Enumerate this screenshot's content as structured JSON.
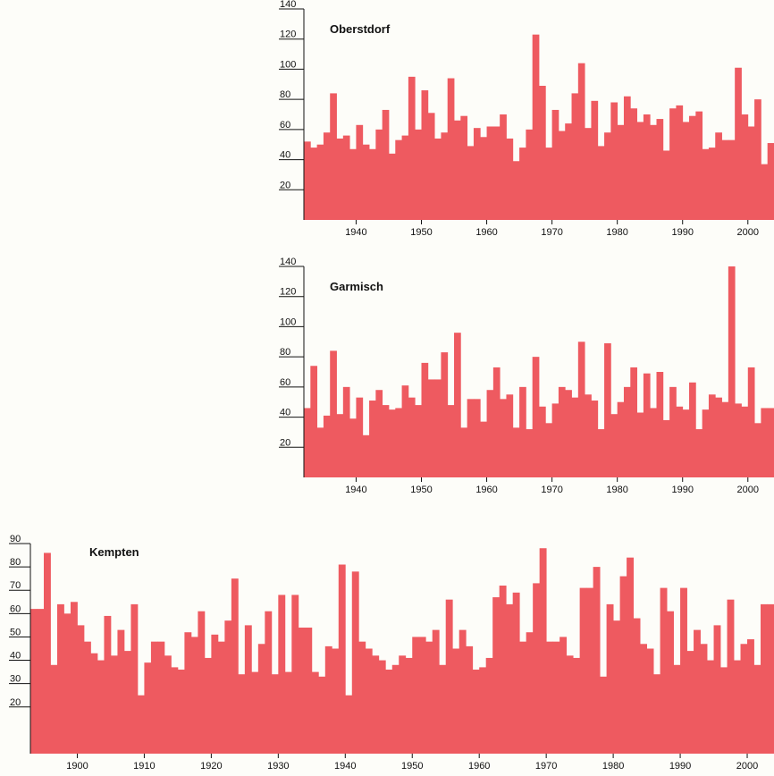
{
  "colors": {
    "bar": "#ee5a60",
    "axis": "#111111",
    "background": "#fdfdf9",
    "edge": "#3a3a9a"
  },
  "chart_data": [
    {
      "type": "bar",
      "title": "Oberstdorf",
      "xlabel": "",
      "ylabel": "",
      "xlim": [
        1932,
        2004
      ],
      "ylim": [
        0,
        140
      ],
      "yticks": [
        20,
        40,
        60,
        80,
        100,
        120,
        140
      ],
      "xticks": [
        1940,
        1950,
        1960,
        1970,
        1980,
        1990,
        2000
      ],
      "x": [
        1932,
        1933,
        1934,
        1935,
        1936,
        1937,
        1938,
        1939,
        1940,
        1941,
        1942,
        1943,
        1944,
        1945,
        1946,
        1947,
        1948,
        1949,
        1950,
        1951,
        1952,
        1953,
        1954,
        1955,
        1956,
        1957,
        1958,
        1959,
        1960,
        1961,
        1962,
        1963,
        1964,
        1965,
        1966,
        1967,
        1968,
        1969,
        1970,
        1971,
        1972,
        1973,
        1974,
        1975,
        1976,
        1977,
        1978,
        1979,
        1980,
        1981,
        1982,
        1983,
        1984,
        1985,
        1986,
        1987,
        1988,
        1989,
        1990,
        1991,
        1992,
        1993,
        1994,
        1995,
        1996,
        1997,
        1998,
        1999,
        2000,
        2001,
        2002,
        2003
      ],
      "values": [
        52,
        48,
        50,
        58,
        84,
        54,
        56,
        47,
        63,
        50,
        47,
        60,
        73,
        44,
        53,
        56,
        95,
        60,
        86,
        71,
        54,
        58,
        94,
        66,
        69,
        49,
        61,
        55,
        62,
        62,
        70,
        54,
        39,
        48,
        60,
        123,
        89,
        48,
        73,
        59,
        64,
        84,
        104,
        61,
        79,
        49,
        58,
        78,
        63,
        82,
        74,
        65,
        70,
        63,
        67,
        46,
        74,
        76,
        65,
        69,
        72,
        47,
        48,
        58,
        53,
        53,
        101,
        70,
        62,
        80,
        37,
        51
      ]
    },
    {
      "type": "bar",
      "title": "Garmisch",
      "xlabel": "",
      "ylabel": "",
      "xlim": [
        1932,
        2004
      ],
      "ylim": [
        0,
        140
      ],
      "yticks": [
        20,
        40,
        60,
        80,
        100,
        120,
        140
      ],
      "xticks": [
        1940,
        1950,
        1960,
        1970,
        1980,
        1990,
        2000
      ],
      "x": [
        1932,
        1933,
        1934,
        1935,
        1936,
        1937,
        1938,
        1939,
        1940,
        1941,
        1942,
        1943,
        1944,
        1945,
        1946,
        1947,
        1948,
        1949,
        1950,
        1951,
        1952,
        1953,
        1954,
        1955,
        1956,
        1957,
        1958,
        1959,
        1960,
        1961,
        1962,
        1963,
        1964,
        1965,
        1966,
        1967,
        1968,
        1969,
        1970,
        1971,
        1972,
        1973,
        1974,
        1975,
        1976,
        1977,
        1978,
        1979,
        1980,
        1981,
        1982,
        1983,
        1984,
        1985,
        1986,
        1987,
        1988,
        1989,
        1990,
        1991,
        1992,
        1993,
        1994,
        1995,
        1996,
        1997,
        1998,
        1999,
        2000,
        2001,
        2002,
        2003
      ],
      "values": [
        46,
        74,
        33,
        41,
        84,
        42,
        60,
        39,
        53,
        28,
        51,
        58,
        48,
        45,
        46,
        61,
        53,
        48,
        76,
        65,
        65,
        83,
        48,
        96,
        33,
        52,
        52,
        37,
        58,
        73,
        52,
        55,
        33,
        60,
        32,
        80,
        47,
        36,
        49,
        60,
        58,
        53,
        90,
        55,
        51,
        32,
        89,
        42,
        50,
        60,
        73,
        43,
        69,
        46,
        70,
        38,
        60,
        47,
        45,
        63,
        32,
        45,
        55,
        53,
        50,
        140,
        49,
        47,
        73,
        36,
        46,
        46
      ]
    },
    {
      "type": "bar",
      "title": "Kempten",
      "xlabel": "",
      "ylabel": "",
      "xlim": [
        1893,
        2004
      ],
      "ylim": [
        0,
        90
      ],
      "yticks": [
        20,
        30,
        40,
        50,
        60,
        70,
        80,
        90
      ],
      "xticks": [
        1900,
        1910,
        1920,
        1930,
        1940,
        1950,
        1960,
        1970,
        1980,
        1990,
        2000
      ],
      "x": [
        1893,
        1894,
        1895,
        1896,
        1897,
        1898,
        1899,
        1900,
        1901,
        1902,
        1903,
        1904,
        1905,
        1906,
        1907,
        1908,
        1909,
        1910,
        1911,
        1912,
        1913,
        1914,
        1915,
        1916,
        1917,
        1918,
        1919,
        1920,
        1921,
        1922,
        1923,
        1924,
        1925,
        1926,
        1927,
        1928,
        1929,
        1930,
        1931,
        1932,
        1933,
        1934,
        1935,
        1936,
        1937,
        1938,
        1939,
        1940,
        1941,
        1942,
        1943,
        1944,
        1945,
        1946,
        1947,
        1948,
        1949,
        1950,
        1951,
        1952,
        1953,
        1954,
        1955,
        1956,
        1957,
        1958,
        1959,
        1960,
        1961,
        1962,
        1963,
        1964,
        1965,
        1966,
        1967,
        1968,
        1969,
        1970,
        1971,
        1972,
        1973,
        1974,
        1975,
        1976,
        1977,
        1978,
        1979,
        1980,
        1981,
        1982,
        1983,
        1984,
        1985,
        1986,
        1987,
        1988,
        1989,
        1990,
        1991,
        1992,
        1993,
        1994,
        1995,
        1996,
        1997,
        1998,
        1999,
        2000,
        2001,
        2002,
        2003
      ],
      "values": [
        62,
        62,
        86,
        38,
        64,
        60,
        65,
        55,
        48,
        43,
        40,
        59,
        42,
        53,
        44,
        64,
        25,
        39,
        48,
        48,
        42,
        37,
        36,
        52,
        50,
        61,
        41,
        51,
        48,
        57,
        75,
        34,
        55,
        35,
        47,
        61,
        34,
        68,
        35,
        68,
        54,
        54,
        35,
        33,
        46,
        45,
        81,
        25,
        78,
        48,
        45,
        42,
        40,
        36,
        38,
        42,
        41,
        50,
        50,
        48,
        53,
        38,
        66,
        45,
        53,
        46,
        36,
        37,
        41,
        67,
        72,
        64,
        69,
        48,
        52,
        73,
        88,
        48,
        48,
        50,
        42,
        41,
        71,
        71,
        80,
        33,
        64,
        57,
        76,
        84,
        58,
        47,
        45,
        34,
        71,
        61,
        38,
        71,
        44,
        53,
        47,
        40,
        55,
        37,
        66,
        40,
        47,
        49,
        38,
        64,
        64
      ]
    }
  ]
}
